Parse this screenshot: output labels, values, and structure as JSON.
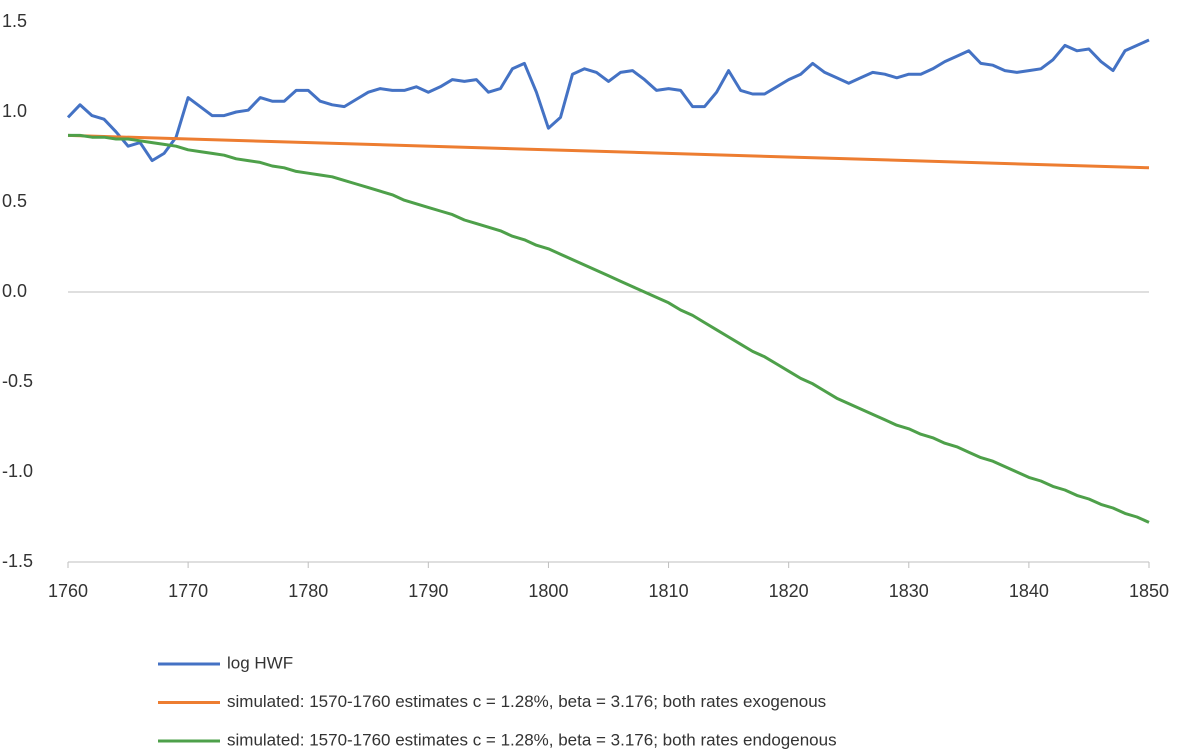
{
  "chart_data": {
    "type": "line",
    "x": [
      1760,
      1761,
      1762,
      1763,
      1764,
      1765,
      1766,
      1767,
      1768,
      1769,
      1770,
      1771,
      1772,
      1773,
      1774,
      1775,
      1776,
      1777,
      1778,
      1779,
      1780,
      1781,
      1782,
      1783,
      1784,
      1785,
      1786,
      1787,
      1788,
      1789,
      1790,
      1791,
      1792,
      1793,
      1794,
      1795,
      1796,
      1797,
      1798,
      1799,
      1800,
      1801,
      1802,
      1803,
      1804,
      1805,
      1806,
      1807,
      1808,
      1809,
      1810,
      1811,
      1812,
      1813,
      1814,
      1815,
      1816,
      1817,
      1818,
      1819,
      1820,
      1821,
      1822,
      1823,
      1824,
      1825,
      1826,
      1827,
      1828,
      1829,
      1830,
      1831,
      1832,
      1833,
      1834,
      1835,
      1836,
      1837,
      1838,
      1839,
      1840,
      1841,
      1842,
      1843,
      1844,
      1845,
      1846,
      1847,
      1848,
      1849,
      1850
    ],
    "series": [
      {
        "name": "log HWF",
        "color": "#4472c4",
        "values": [
          0.97,
          1.04,
          0.98,
          0.96,
          0.89,
          0.81,
          0.83,
          0.73,
          0.77,
          0.86,
          1.08,
          1.03,
          0.98,
          0.98,
          1.0,
          1.01,
          1.08,
          1.06,
          1.06,
          1.12,
          1.12,
          1.06,
          1.04,
          1.03,
          1.07,
          1.11,
          1.13,
          1.12,
          1.12,
          1.14,
          1.11,
          1.14,
          1.18,
          1.17,
          1.18,
          1.11,
          1.13,
          1.24,
          1.27,
          1.11,
          0.91,
          0.97,
          1.21,
          1.24,
          1.22,
          1.17,
          1.22,
          1.23,
          1.18,
          1.12,
          1.13,
          1.12,
          1.03,
          1.03,
          1.11,
          1.23,
          1.12,
          1.1,
          1.1,
          1.14,
          1.18,
          1.21,
          1.27,
          1.22,
          1.19,
          1.16,
          1.19,
          1.22,
          1.21,
          1.19,
          1.21,
          1.21,
          1.24,
          1.28,
          1.31,
          1.34,
          1.27,
          1.26,
          1.23,
          1.22,
          1.23,
          1.24,
          1.29,
          1.37,
          1.34,
          1.35,
          1.28,
          1.23,
          1.34,
          1.37,
          1.4
        ]
      },
      {
        "name": "simulated: 1570-1760 estimates c = 1.28%, beta = 3.176; both rates exogenous",
        "color": "#ed7d31",
        "x": [
          1760,
          1850
        ],
        "values": [
          0.87,
          0.69
        ]
      },
      {
        "name": "simulated: 1570-1760 estimates c = 1.28%, beta = 3.176; both rates endogenous",
        "color": "#4ea04a",
        "values": [
          0.87,
          0.87,
          0.86,
          0.86,
          0.85,
          0.85,
          0.84,
          0.83,
          0.82,
          0.81,
          0.79,
          0.78,
          0.77,
          0.76,
          0.74,
          0.73,
          0.72,
          0.7,
          0.69,
          0.67,
          0.66,
          0.65,
          0.64,
          0.62,
          0.6,
          0.58,
          0.56,
          0.54,
          0.51,
          0.49,
          0.47,
          0.45,
          0.43,
          0.4,
          0.38,
          0.36,
          0.34,
          0.31,
          0.29,
          0.26,
          0.24,
          0.21,
          0.18,
          0.15,
          0.12,
          0.09,
          0.06,
          0.03,
          0.0,
          -0.03,
          -0.06,
          -0.1,
          -0.13,
          -0.17,
          -0.21,
          -0.25,
          -0.29,
          -0.33,
          -0.36,
          -0.4,
          -0.44,
          -0.48,
          -0.51,
          -0.55,
          -0.59,
          -0.62,
          -0.65,
          -0.68,
          -0.71,
          -0.74,
          -0.76,
          -0.79,
          -0.81,
          -0.84,
          -0.86,
          -0.89,
          -0.92,
          -0.94,
          -0.97,
          -1.0,
          -1.03,
          -1.05,
          -1.08,
          -1.1,
          -1.13,
          -1.15,
          -1.18,
          -1.2,
          -1.23,
          -1.25,
          -1.28
        ]
      }
    ],
    "xlim": [
      1760,
      1850
    ],
    "xticks": [
      1760,
      1770,
      1780,
      1790,
      1800,
      1810,
      1820,
      1830,
      1840,
      1850
    ],
    "ylim": [
      -1.5,
      1.5
    ],
    "yticks": [
      1.5,
      {
        "value": 1,
        "label": "1.0"
      },
      0.5,
      {
        "value": 0,
        "label": "0.0"
      },
      -0.5,
      {
        "value": -1,
        "label": "-1.0"
      },
      -1.5
    ],
    "legend": "bottom"
  }
}
